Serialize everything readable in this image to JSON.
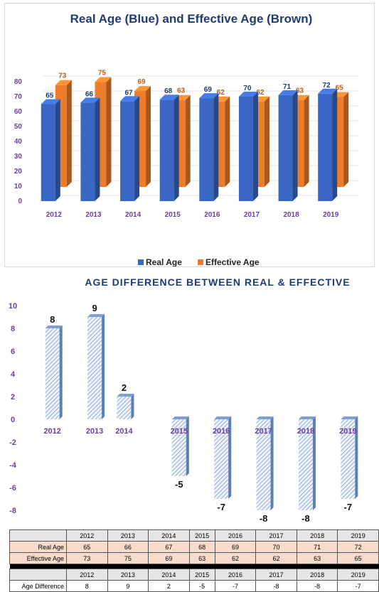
{
  "chart_data": [
    {
      "type": "bar",
      "title": "Real Age (Blue) and Effective Age (Brown)",
      "categories": [
        "2012",
        "2013",
        "2014",
        "2015",
        "2016",
        "2017",
        "2018",
        "2019"
      ],
      "series": [
        {
          "name": "Real Age",
          "values": [
            65,
            66,
            67,
            68,
            69,
            70,
            71,
            72
          ],
          "color": "#3a67c4"
        },
        {
          "name": "Effective Age",
          "values": [
            73,
            75,
            69,
            63,
            62,
            62,
            63,
            65
          ],
          "color": "#ee7d2b"
        }
      ],
      "yticks": [
        "80",
        "70",
        "60",
        "50",
        "40",
        "30",
        "20",
        "10",
        "0"
      ],
      "ylim": [
        0,
        80
      ],
      "legend": "bottom",
      "grid": true
    },
    {
      "type": "bar",
      "title": "AGE DIFFERENCE BETWEEN REAL & EFFECTIVE",
      "categories": [
        "2012",
        "2013",
        "2014",
        "2015",
        "2016",
        "2017",
        "2018",
        "2019"
      ],
      "series": [
        {
          "name": "Age Difference",
          "values": [
            8,
            9,
            2,
            -5,
            -7,
            -8,
            -8,
            -7
          ],
          "color": "#a9c3e6"
        }
      ],
      "yticks": [
        "10",
        "8",
        "6",
        "4",
        "2",
        "0",
        "-2",
        "-4",
        "-6",
        "-8"
      ],
      "ylim": [
        -8,
        10
      ]
    }
  ],
  "table": {
    "years": [
      "2012",
      "2013",
      "2014",
      "2015",
      "2016",
      "2017",
      "2018",
      "2019"
    ],
    "real_label": "Real Age",
    "real": [
      "65",
      "66",
      "67",
      "68",
      "69",
      "70",
      "71",
      "72"
    ],
    "eff_label": "Effective Age",
    "eff": [
      "73",
      "75",
      "69",
      "63",
      "62",
      "62",
      "63",
      "65"
    ],
    "diff_label": "Age Difference",
    "diff": [
      "8",
      "9",
      "2",
      "-5",
      "-7",
      "-8",
      "-8",
      "-7"
    ]
  },
  "colors": {
    "title": "#1f3b73",
    "axis_label": "#6a3fa0",
    "tick": "#6a3fa0"
  }
}
